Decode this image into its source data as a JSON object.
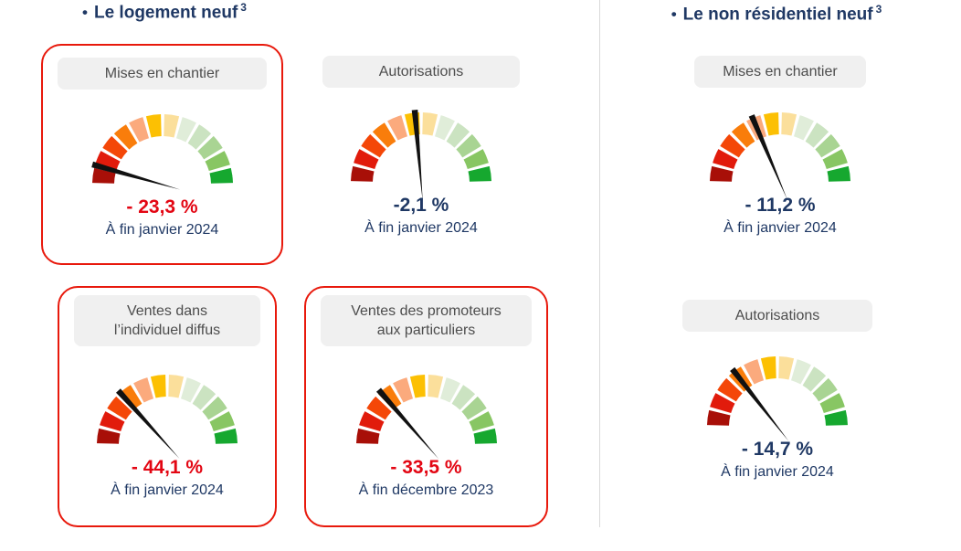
{
  "colors": {
    "navy_text": "#1f3864",
    "value_red": "#e30613",
    "card_outline_red": "#e8190c",
    "pill_background": "#f0f0f0",
    "pill_text": "#4d4d4d",
    "divider_gray": "#d9d9d9",
    "needle_black": "#111111"
  },
  "gauge_segment_colors": [
    "#a80f08",
    "#e11b0c",
    "#f44708",
    "#f97d0b",
    "#fbaa7d",
    "#fcc003",
    "#fbdf9b",
    "#e0edd9",
    "#cbe3c1",
    "#a9d493",
    "#88c663",
    "#16a82f"
  ],
  "sections": [
    {
      "bullet": "•",
      "title": "Le logement neuf",
      "title_sup": "3",
      "gauges": [
        {
          "label": "Mises en chantier",
          "value": "- 23,3 %",
          "date": "À fin janvier 2024",
          "value_color": "red",
          "highlighted": true,
          "needle_angle": 164
        },
        {
          "label": "Autorisations",
          "value": "-2,1 %",
          "date": "À fin janvier 2024",
          "value_color": "navy",
          "highlighted": false,
          "needle_angle": 95
        },
        {
          "label": "Ventes dans",
          "label2": "l’individuel diffus",
          "value": "- 44,1 %",
          "date": "À fin janvier 2024",
          "value_color": "red",
          "highlighted": true,
          "needle_angle": 132
        },
        {
          "label": "Ventes des promoteurs",
          "label2": "aux particuliers",
          "value": "- 33,5 %",
          "date": "À fin décembre 2023",
          "value_color": "red",
          "highlighted": true,
          "needle_angle": 131
        }
      ]
    },
    {
      "bullet": "•",
      "title": "Le non résidentiel neuf",
      "title_sup": "3",
      "gauges": [
        {
          "label": "Mises en chantier",
          "value": "- 11,2 %",
          "date": "À fin janvier 2024",
          "value_color": "navy",
          "highlighted": false,
          "needle_angle": 113
        },
        {
          "label": "Autorisations",
          "value": "- 14,7 %",
          "date": "À fin janvier 2024",
          "value_color": "navy",
          "highlighted": false,
          "needle_angle": 128
        }
      ]
    }
  ],
  "chart_data": [
    {
      "type": "gauge",
      "section": "Le logement neuf",
      "title": "Mises en chantier",
      "value_pct": -23.3,
      "value_label": "- 23,3 %",
      "period": "À fin janvier 2024",
      "highlighted": true,
      "scale": "red-to-green semicircle, 12 segments"
    },
    {
      "type": "gauge",
      "section": "Le logement neuf",
      "title": "Autorisations",
      "value_pct": -2.1,
      "value_label": "-2,1 %",
      "period": "À fin janvier 2024",
      "highlighted": false,
      "scale": "red-to-green semicircle, 12 segments"
    },
    {
      "type": "gauge",
      "section": "Le logement neuf",
      "title": "Ventes dans l’individuel diffus",
      "value_pct": -44.1,
      "value_label": "- 44,1 %",
      "period": "À fin janvier 2024",
      "highlighted": true,
      "scale": "red-to-green semicircle, 12 segments"
    },
    {
      "type": "gauge",
      "section": "Le logement neuf",
      "title": "Ventes des promoteurs aux particuliers",
      "value_pct": -33.5,
      "value_label": "- 33,5 %",
      "period": "À fin décembre 2023",
      "highlighted": true,
      "scale": "red-to-green semicircle, 12 segments"
    },
    {
      "type": "gauge",
      "section": "Le non résidentiel neuf",
      "title": "Mises en chantier",
      "value_pct": -11.2,
      "value_label": "- 11,2 %",
      "period": "À fin janvier 2024",
      "highlighted": false,
      "scale": "red-to-green semicircle, 12 segments"
    },
    {
      "type": "gauge",
      "section": "Le non résidentiel neuf",
      "title": "Autorisations",
      "value_pct": -14.7,
      "value_label": "- 14,7 %",
      "period": "À fin janvier 2024",
      "highlighted": false,
      "scale": "red-to-green semicircle, 12 segments"
    }
  ]
}
